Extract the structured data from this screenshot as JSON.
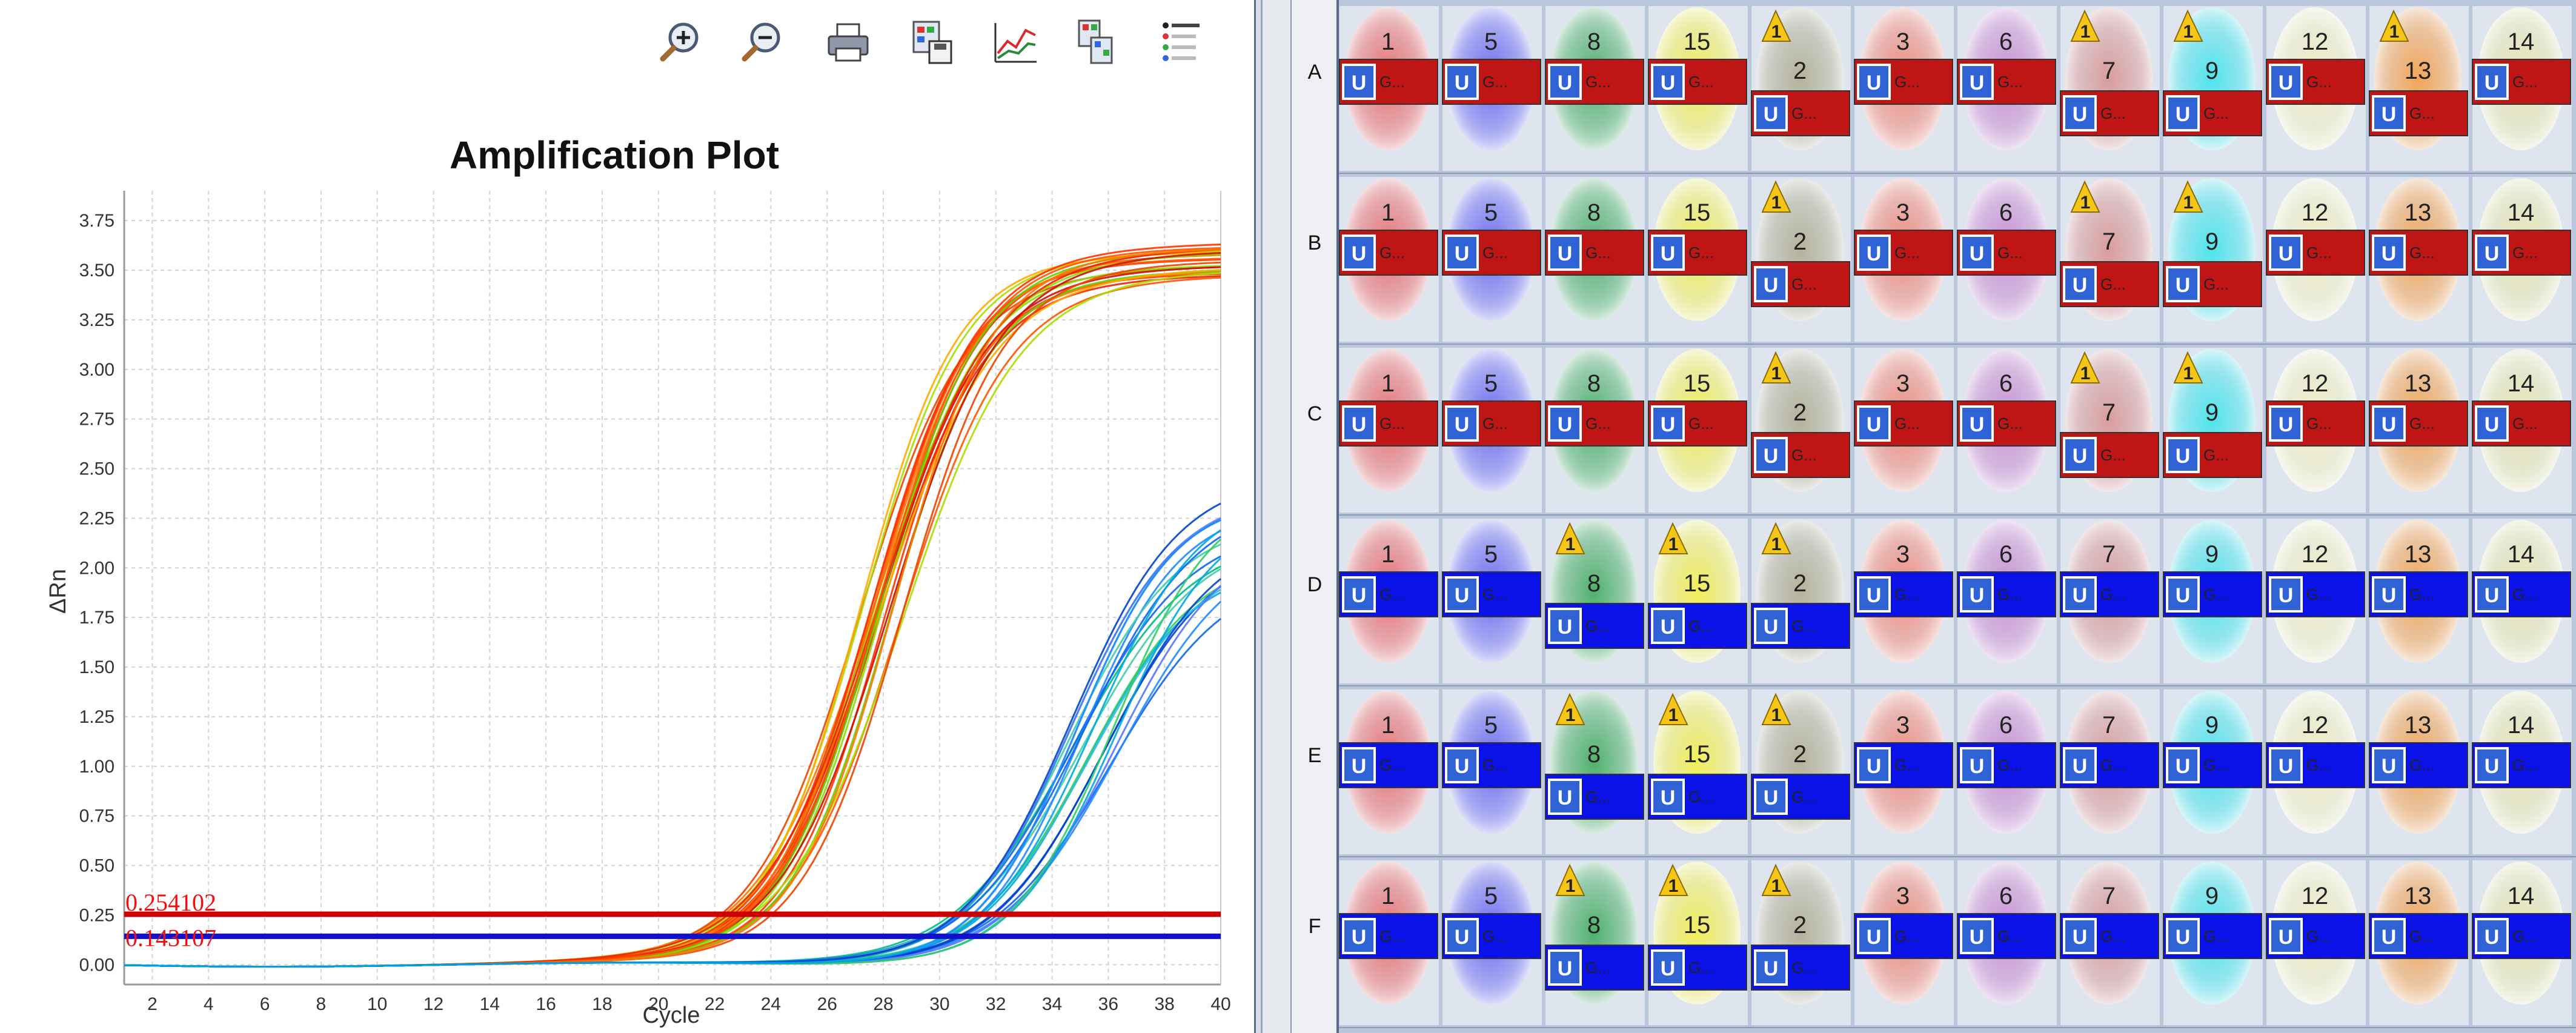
{
  "toolbar": {
    "buttons": [
      {
        "icon": "zoom-in-icon"
      },
      {
        "icon": "zoom-out-icon"
      },
      {
        "icon": "print-icon"
      },
      {
        "icon": "save-image-icon"
      },
      {
        "icon": "plot-settings-icon"
      },
      {
        "icon": "plate-layout-icon"
      },
      {
        "icon": "legend-icon"
      }
    ]
  },
  "chart_data": {
    "type": "line",
    "title": "Amplification Plot",
    "xlabel": "Cycle",
    "ylabel": "ΔRn",
    "xlim": [
      1,
      40
    ],
    "ylim": [
      -0.1,
      3.9
    ],
    "x_ticks": [
      "2",
      "4",
      "6",
      "8",
      "10",
      "12",
      "14",
      "16",
      "18",
      "20",
      "22",
      "24",
      "26",
      "28",
      "30",
      "32",
      "34",
      "36",
      "38",
      "40"
    ],
    "y_ticks": [
      "0.00",
      "0.25",
      "0.50",
      "0.75",
      "1.00",
      "1.25",
      "1.50",
      "1.75",
      "2.00",
      "2.25",
      "2.50",
      "2.75",
      "3.00",
      "3.25",
      "3.50",
      "3.75"
    ],
    "grid": true,
    "thresholds": [
      {
        "label": "0.254102",
        "value": 0.254102,
        "color": "#cc0000"
      },
      {
        "label": "0.143107",
        "value": 0.143107,
        "color": "#1111cc"
      }
    ],
    "curve_groups": [
      {
        "plateau_range": [
          3.45,
          3.65
        ],
        "midpoint_range": [
          27.0,
          28.8
        ],
        "slope": 1.9,
        "count": 24,
        "colors": [
          "#ff3300",
          "#ee2200",
          "#ff5500",
          "#ff7700",
          "#ee4400",
          "#66cc00",
          "#88dd00",
          "#aadd00",
          "#ffaa00",
          "#cc1100"
        ]
      },
      {
        "plateau_range": [
          1.95,
          2.55
        ],
        "midpoint_range": [
          34.5,
          36.5
        ],
        "slope": 1.95,
        "count": 22,
        "colors": [
          "#1166ee",
          "#2288ff",
          "#0044cc",
          "#00aadd",
          "#33bbee",
          "#44ccaa",
          "#33cc66",
          "#00bb88",
          "#5577ff"
        ]
      }
    ]
  },
  "plate": {
    "rows": [
      "A",
      "B",
      "C",
      "D",
      "E",
      "F"
    ],
    "columns": [
      {
        "number": "1",
        "color": "#e86f6f"
      },
      {
        "number": "5",
        "color": "#6b6bf0"
      },
      {
        "number": "8",
        "color": "#4fb06b"
      },
      {
        "number": "15",
        "color": "#f2ee5a"
      },
      {
        "number": "2",
        "color": "#b4b29a"
      },
      {
        "number": "3",
        "color": "#ef8a7a"
      },
      {
        "number": "6",
        "color": "#c98ed2"
      },
      {
        "number": "7",
        "color": "#d99c9c"
      },
      {
        "number": "9",
        "color": "#4fe4ec"
      },
      {
        "number": "12",
        "color": "#f1efc0"
      },
      {
        "number": "13",
        "color": "#f2a456"
      },
      {
        "number": "14",
        "color": "#e8e6b0"
      }
    ],
    "warn_label": "1",
    "u_label": "U",
    "g_label": "G...",
    "task_colors": [
      "#c01515",
      "#0a12e8"
    ],
    "row_task": [
      0,
      0,
      0,
      1,
      1,
      1
    ],
    "warnings": [
      [
        false,
        false,
        false,
        false,
        true,
        false,
        false,
        true,
        true,
        false,
        true,
        false
      ],
      [
        false,
        false,
        false,
        false,
        true,
        false,
        false,
        true,
        true,
        false,
        false,
        false
      ],
      [
        false,
        false,
        false,
        false,
        true,
        false,
        false,
        true,
        true,
        false,
        false,
        false
      ],
      [
        false,
        false,
        true,
        true,
        true,
        false,
        false,
        false,
        false,
        false,
        false,
        false
      ],
      [
        false,
        false,
        true,
        true,
        true,
        false,
        false,
        false,
        false,
        false,
        false,
        false
      ],
      [
        false,
        false,
        true,
        true,
        true,
        false,
        false,
        false,
        false,
        false,
        false,
        false
      ]
    ]
  }
}
